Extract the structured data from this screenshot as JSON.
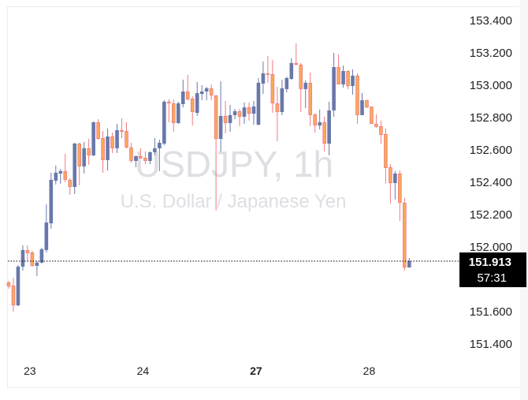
{
  "watermark": {
    "symbol": "USDJPY, 1h",
    "description": "U.S. Dollar / Japanese Yen"
  },
  "current_price": {
    "value": "151.913",
    "countdown": "57:31"
  },
  "colors": {
    "up": "#6878aa",
    "down_fill": "#f9a95b",
    "down_border": "#f07a80",
    "price_label_bg": "#000000"
  },
  "chart_data": {
    "type": "candlestick",
    "title": "USDJPY, 1h",
    "subtitle": "U.S. Dollar / Japanese Yen",
    "ylim": [
      151.27,
      153.52
    ],
    "grid": false,
    "y_ticks": [
      "153.400",
      "153.200",
      "153.000",
      "152.800",
      "152.600",
      "152.400",
      "152.200",
      "152.000",
      "151.600",
      "151.400"
    ],
    "x_ticks": [
      {
        "label": "23",
        "candle": 5,
        "bold": false
      },
      {
        "label": "24",
        "candle": 29,
        "bold": false
      },
      {
        "label": "27",
        "candle": 53,
        "bold": true
      },
      {
        "label": "28",
        "candle": 77,
        "bold": false
      }
    ],
    "ohlc_fields": [
      "open",
      "high",
      "low",
      "close"
    ],
    "candles": [
      [
        151.781,
        151.79,
        151.742,
        151.756
      ],
      [
        151.761,
        151.81,
        151.6,
        151.639
      ],
      [
        151.639,
        151.888,
        151.634,
        151.878
      ],
      [
        151.878,
        152.01,
        151.854,
        151.981
      ],
      [
        151.981,
        152.01,
        151.912,
        151.961
      ],
      [
        151.966,
        151.976,
        151.878,
        151.883
      ],
      [
        151.883,
        151.912,
        151.82,
        151.903
      ],
      [
        151.903,
        151.995,
        151.898,
        151.986
      ],
      [
        151.981,
        152.264,
        151.966,
        152.151
      ],
      [
        152.146,
        152.459,
        152.112,
        152.415
      ],
      [
        152.41,
        152.503,
        152.386,
        152.459
      ],
      [
        152.454,
        152.483,
        152.391,
        152.469
      ],
      [
        152.469,
        152.576,
        152.4,
        152.415
      ],
      [
        152.415,
        152.425,
        152.322,
        152.371
      ],
      [
        152.371,
        152.644,
        152.327,
        152.639
      ],
      [
        152.639,
        152.644,
        152.381,
        152.498
      ],
      [
        152.498,
        152.649,
        152.454,
        152.61
      ],
      [
        152.61,
        152.668,
        152.508,
        152.566
      ],
      [
        152.566,
        152.776,
        152.561,
        152.771
      ],
      [
        152.771,
        152.79,
        152.663,
        152.668
      ],
      [
        152.673,
        152.717,
        152.459,
        152.537
      ],
      [
        152.537,
        152.732,
        152.473,
        152.683
      ],
      [
        152.683,
        152.707,
        152.581,
        152.61
      ],
      [
        152.61,
        152.761,
        152.581,
        152.722
      ],
      [
        152.722,
        152.795,
        152.673,
        152.712
      ],
      [
        152.717,
        152.771,
        152.61,
        152.615
      ],
      [
        152.615,
        152.644,
        152.522,
        152.532
      ],
      [
        152.532,
        152.566,
        152.493,
        152.561
      ],
      [
        152.561,
        152.61,
        152.547,
        152.547
      ],
      [
        152.551,
        152.59,
        152.512,
        152.532
      ],
      [
        152.532,
        152.59,
        152.512,
        152.586
      ],
      [
        152.586,
        152.673,
        152.566,
        152.61
      ],
      [
        152.61,
        152.663,
        152.469,
        152.644
      ],
      [
        152.639,
        152.907,
        152.629,
        152.898
      ],
      [
        152.898,
        152.912,
        152.771,
        152.888
      ],
      [
        152.888,
        152.912,
        152.712,
        152.766
      ],
      [
        152.766,
        152.898,
        152.761,
        152.888
      ],
      [
        152.883,
        153.034,
        152.863,
        152.961
      ],
      [
        152.961,
        153.064,
        152.907,
        152.912
      ],
      [
        152.917,
        152.932,
        152.751,
        152.834
      ],
      [
        152.829,
        153.02,
        152.81,
        152.951
      ],
      [
        152.946,
        153.0,
        152.907,
        152.961
      ],
      [
        152.961,
        152.99,
        152.907,
        152.981
      ],
      [
        152.981,
        153.005,
        152.907,
        152.937
      ],
      [
        152.937,
        152.937,
        152.225,
        152.668
      ],
      [
        152.668,
        153.024,
        152.59,
        152.81
      ],
      [
        152.81,
        152.903,
        152.703,
        152.766
      ],
      [
        152.766,
        152.878,
        152.712,
        152.815
      ],
      [
        152.815,
        152.854,
        152.79,
        152.839
      ],
      [
        152.839,
        152.854,
        152.747,
        152.805
      ],
      [
        152.805,
        152.893,
        152.761,
        152.863
      ],
      [
        152.863,
        152.893,
        152.781,
        152.824
      ],
      [
        152.824,
        152.903,
        152.756,
        152.868
      ],
      [
        152.756,
        153.044,
        152.751,
        153.015
      ],
      [
        153.01,
        153.146,
        152.946,
        153.073
      ],
      [
        153.073,
        153.181,
        153.015,
        153.068
      ],
      [
        153.068,
        153.156,
        152.829,
        152.888
      ],
      [
        152.888,
        152.99,
        152.654,
        152.834
      ],
      [
        152.834,
        153.034,
        152.815,
        152.981
      ],
      [
        152.976,
        153.054,
        152.956,
        153.044
      ],
      [
        153.039,
        153.166,
        153.034,
        153.137
      ],
      [
        153.137,
        153.259,
        153.122,
        153.127
      ],
      [
        153.127,
        153.137,
        152.834,
        152.976
      ],
      [
        152.976,
        153.029,
        152.859,
        153.015
      ],
      [
        153.015,
        153.078,
        152.747,
        152.815
      ],
      [
        152.82,
        152.825,
        152.707,
        152.751
      ],
      [
        152.751,
        152.849,
        152.727,
        152.771
      ],
      [
        152.771,
        152.805,
        152.59,
        152.639
      ],
      [
        152.639,
        152.898,
        152.566,
        152.844
      ],
      [
        152.844,
        153.2,
        152.805,
        153.112
      ],
      [
        153.112,
        153.19,
        153.005,
        153.005
      ],
      [
        153.005,
        153.122,
        152.985,
        153.088
      ],
      [
        153.088,
        153.093,
        152.976,
        152.995
      ],
      [
        152.995,
        153.098,
        152.942,
        153.059
      ],
      [
        153.059,
        153.073,
        152.761,
        152.815
      ],
      [
        152.815,
        152.951,
        152.815,
        152.907
      ],
      [
        152.907,
        152.912,
        152.859,
        152.863
      ],
      [
        152.868,
        152.868,
        152.761,
        152.761
      ],
      [
        152.761,
        152.82,
        152.737,
        152.742
      ],
      [
        152.747,
        152.781,
        152.639,
        152.693
      ],
      [
        152.698,
        152.732,
        152.391,
        152.488
      ],
      [
        152.493,
        152.512,
        152.268,
        152.395
      ],
      [
        152.395,
        152.469,
        152.293,
        152.454
      ],
      [
        152.454,
        152.473,
        152.161,
        152.273
      ],
      [
        152.273,
        152.303,
        151.854,
        151.873
      ],
      [
        151.873,
        151.932,
        151.873,
        151.913
      ]
    ]
  }
}
